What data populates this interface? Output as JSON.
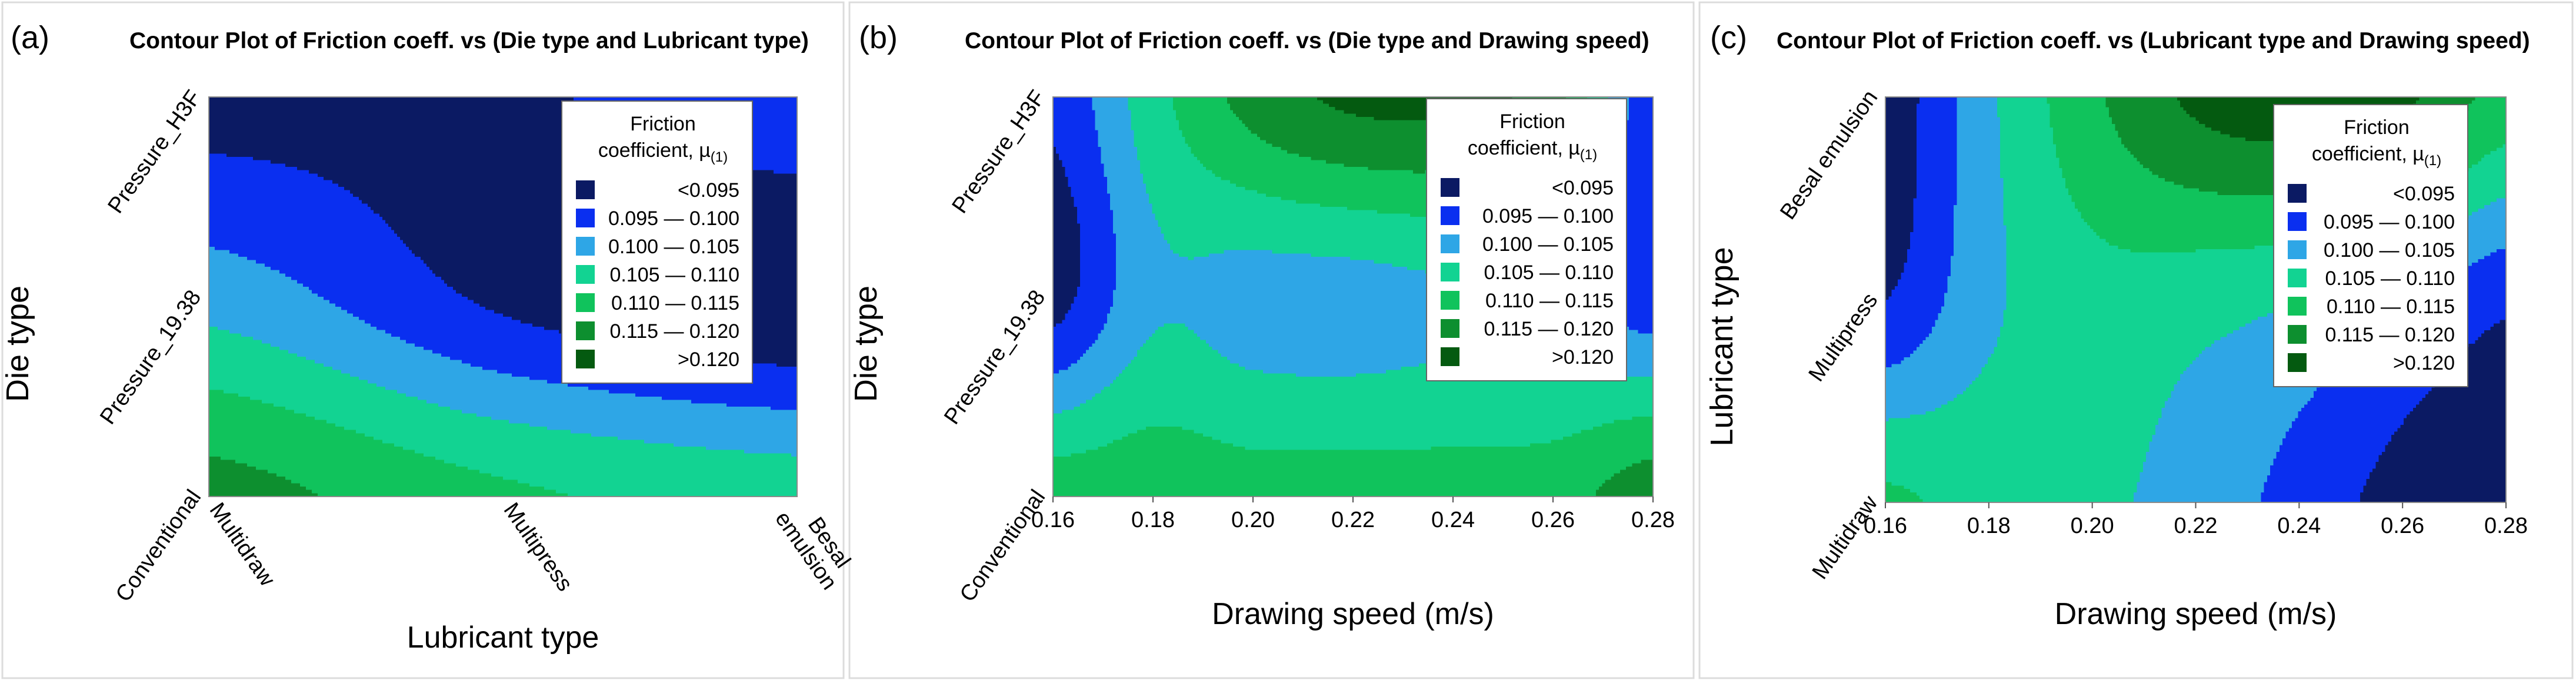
{
  "chart_data": [
    {
      "type": "contour",
      "panel_label": "(a)",
      "title": "Contour Plot of Friction coeff. vs (Die type and Lubricant type)",
      "xlabel": "Lubricant type",
      "ylabel": "Die type",
      "x_categories": [
        "Multidraw",
        "Multipress",
        "Besal emulsion"
      ],
      "x_tick_labels": [
        [
          "Multidraw"
        ],
        [
          "Multipress"
        ],
        [
          "Besal",
          "emulsion"
        ]
      ],
      "y_categories": [
        "Conventional",
        "Pressure_19.38",
        "Pressure_H3F"
      ],
      "legend_position": "top-right",
      "z_grid": [
        [
          0.117,
          0.111,
          0.108
        ],
        [
          0.103,
          0.094,
          0.09
        ],
        [
          0.093,
          0.094,
          0.099
        ]
      ]
    },
    {
      "type": "contour",
      "panel_label": "(b)",
      "title": "Contour Plot of Friction coeff. vs (Die type and Drawing speed)",
      "xlabel": "Drawing speed (m/s)",
      "ylabel": "Die type",
      "x_ticks": [
        "0.16",
        "0.18",
        "0.20",
        "0.22",
        "0.24",
        "0.26",
        "0.28"
      ],
      "x_values": [
        0.16,
        0.18,
        0.2,
        0.22,
        0.24,
        0.26,
        0.28
      ],
      "y_categories": [
        "Conventional",
        "Pressure_19.38",
        "Pressure_H3F"
      ],
      "legend_position": "top-right",
      "z_grid": [
        [
          0.113,
          0.113,
          0.112,
          0.112,
          0.112,
          0.113,
          0.118
        ],
        [
          0.093,
          0.104,
          0.103,
          0.103,
          0.104,
          0.102,
          0.097
        ],
        [
          0.096,
          0.108,
          0.117,
          0.121,
          0.121,
          0.117,
          0.096
        ]
      ]
    },
    {
      "type": "contour",
      "panel_label": "(c)",
      "title": "Contour Plot of Friction coeff. vs (Lubricant type and Drawing speed)",
      "xlabel": "Drawing speed (m/s)",
      "ylabel": "Lubricant type",
      "x_ticks": [
        "0.16",
        "0.18",
        "0.20",
        "0.22",
        "0.24",
        "0.26",
        "0.28"
      ],
      "x_values": [
        0.16,
        0.18,
        0.2,
        0.22,
        0.24,
        0.26,
        0.28
      ],
      "y_categories": [
        "Multidraw",
        "Multipress",
        "Besal emulsion"
      ],
      "legend_position": "top-right",
      "z_grid": [
        [
          0.111,
          0.108,
          0.106,
          0.103,
          0.098,
          0.093,
          0.09
        ],
        [
          0.095,
          0.104,
          0.108,
          0.107,
          0.105,
          0.101,
          0.096
        ],
        [
          0.092,
          0.104,
          0.114,
          0.121,
          0.123,
          0.121,
          0.113
        ]
      ]
    }
  ],
  "legend": {
    "title_lines": [
      "Friction",
      "coefficient, µ"
    ],
    "title_subscript": "(1)",
    "entries": [
      {
        "label": "<0.095",
        "color": "#0b1a63"
      },
      {
        "label": "0.095 — 0.100",
        "color": "#0a2ff0"
      },
      {
        "label": "0.100 — 0.105",
        "color": "#2ea6e6"
      },
      {
        "label": "0.105 — 0.110",
        "color": "#12d392"
      },
      {
        "label": "0.110 — 0.115",
        "color": "#10c35c"
      },
      {
        "label": "0.115 — 0.120",
        "color": "#0d8f2f"
      },
      {
        "label": ">0.120",
        "color": "#045a10"
      }
    ],
    "thresholds": [
      0.095,
      0.1,
      0.105,
      0.11,
      0.115,
      0.12
    ]
  }
}
